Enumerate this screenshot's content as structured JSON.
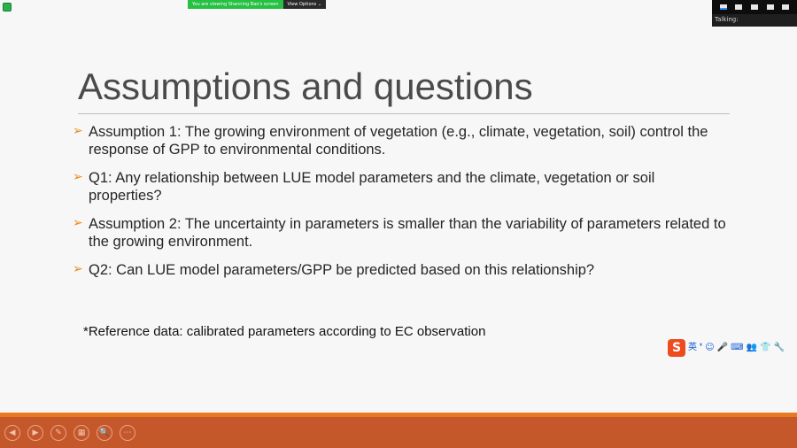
{
  "zoom_bar": {
    "viewing_text": "You are viewing Shanning Bao's screen",
    "view_options_label": "View Options",
    "talking_label": "Talking:"
  },
  "slide": {
    "title": "Assumptions and questions",
    "bullets": [
      {
        "text": "Assumption 1: The growing environment of vegetation (e.g., climate, vegetation, soil) control the response of GPP to environmental conditions."
      },
      {
        "text": "Q1: Any relationship between LUE model parameters and the climate, vegetation or soil properties?"
      },
      {
        "text": "Assumption 2: The uncertainty in parameters is smaller than the variability of parameters related to the growing environment."
      },
      {
        "text": "Q2: Can LUE model parameters/GPP be predicted based on this relationship?"
      }
    ],
    "reference_note": "*Reference data: calibrated parameters according to EC observation"
  },
  "ime": {
    "logo": "S",
    "mode": "英",
    "glyphs": [
      "❜",
      "☺",
      "🎤",
      "⌨",
      "👥",
      "👕",
      "🔧"
    ]
  },
  "controls": {
    "glyphs": [
      "◀",
      "▶",
      "✎",
      "▦",
      "🔍",
      "⋯"
    ]
  }
}
